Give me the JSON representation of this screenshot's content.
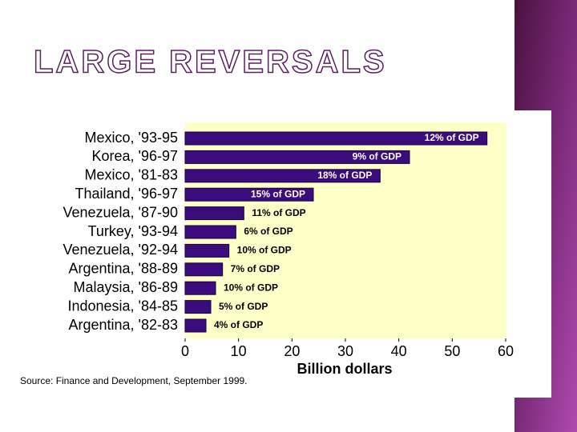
{
  "slide": {
    "title": "LARGE REVERSALS"
  },
  "chart_data": {
    "type": "bar",
    "orientation": "horizontal",
    "categories": [
      "Mexico, '93-95",
      "Korea, '96-97",
      "Mexico, '81-83",
      "Thailand, '96-97",
      "Venezuela, '87-90",
      "Turkey, '93-94",
      "Venezuela, '92-94",
      "Argentina, '88-89",
      "Malaysia, '86-89",
      "Indonesia, '84-85",
      "Argentina, '82-83"
    ],
    "values": [
      56.5,
      42,
      36.5,
      24,
      11,
      9.5,
      8.2,
      7,
      5.7,
      4.8,
      3.9
    ],
    "annotations": [
      "12% of GDP",
      "9% of GDP",
      "18% of GDP",
      "15% of GDP",
      "11% of GDP",
      "6% of GDP",
      "10% of GDP",
      "7% of GDP",
      "10% of GDP",
      "5% of GDP",
      "4% of GDP"
    ],
    "color": "#3b0c7c",
    "xlim": [
      0,
      60
    ],
    "xticks": [
      0,
      10,
      20,
      30,
      40,
      50,
      60
    ],
    "xlabel": "Billion dollars",
    "source": "Source: Finance and Development, September 1999."
  }
}
